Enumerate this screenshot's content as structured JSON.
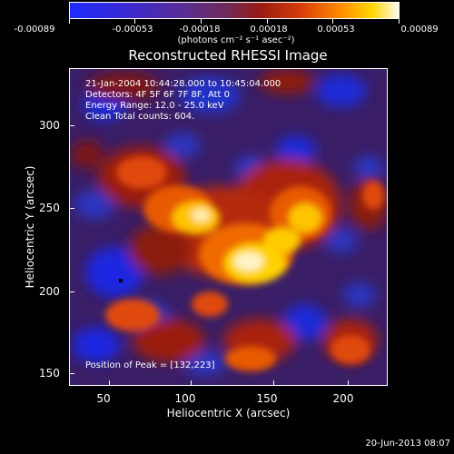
{
  "colorbar": {
    "tick_labels": [
      "-0.00089",
      "-0.00053",
      "-0.00018",
      "0.00018",
      "0.00053",
      "0.00089"
    ],
    "units": "(photons cm⁻² s⁻¹ asec⁻²)",
    "colors": [
      "#1e2bff",
      "#5a2d92",
      "#9a1b12",
      "#ff8a00",
      "#ffd600",
      "#fffaf0"
    ]
  },
  "chart_data": {
    "type": "heatmap",
    "title": "Reconstructed RHESSI Image",
    "xlabel": "Heliocentric X (arcsec)",
    "ylabel": "Heliocentric Y (arcsec)",
    "xlim": [
      30,
      222
    ],
    "ylim": [
      145,
      336
    ],
    "xticks": [
      50,
      100,
      150,
      200
    ],
    "yticks": [
      150,
      200,
      250,
      300
    ],
    "colorbar_range": [
      -0.00089,
      0.00089
    ],
    "peak_position": [
      132,
      223
    ],
    "marker": [
      62,
      204
    ],
    "annotations": {
      "time_range": "21-Jan-2004 10:44:28.000 to 10:45:04.000",
      "detectors": "Detectors: 4F 5F 6F 7F 8F, Att 0",
      "energy": "Energy Range: 12.0 - 25.0 keV",
      "clean": "Clean     Total counts: 604.",
      "peak": "Position of Peak = [132,223]"
    }
  },
  "timestamp": "20-Jun-2013 08:07"
}
